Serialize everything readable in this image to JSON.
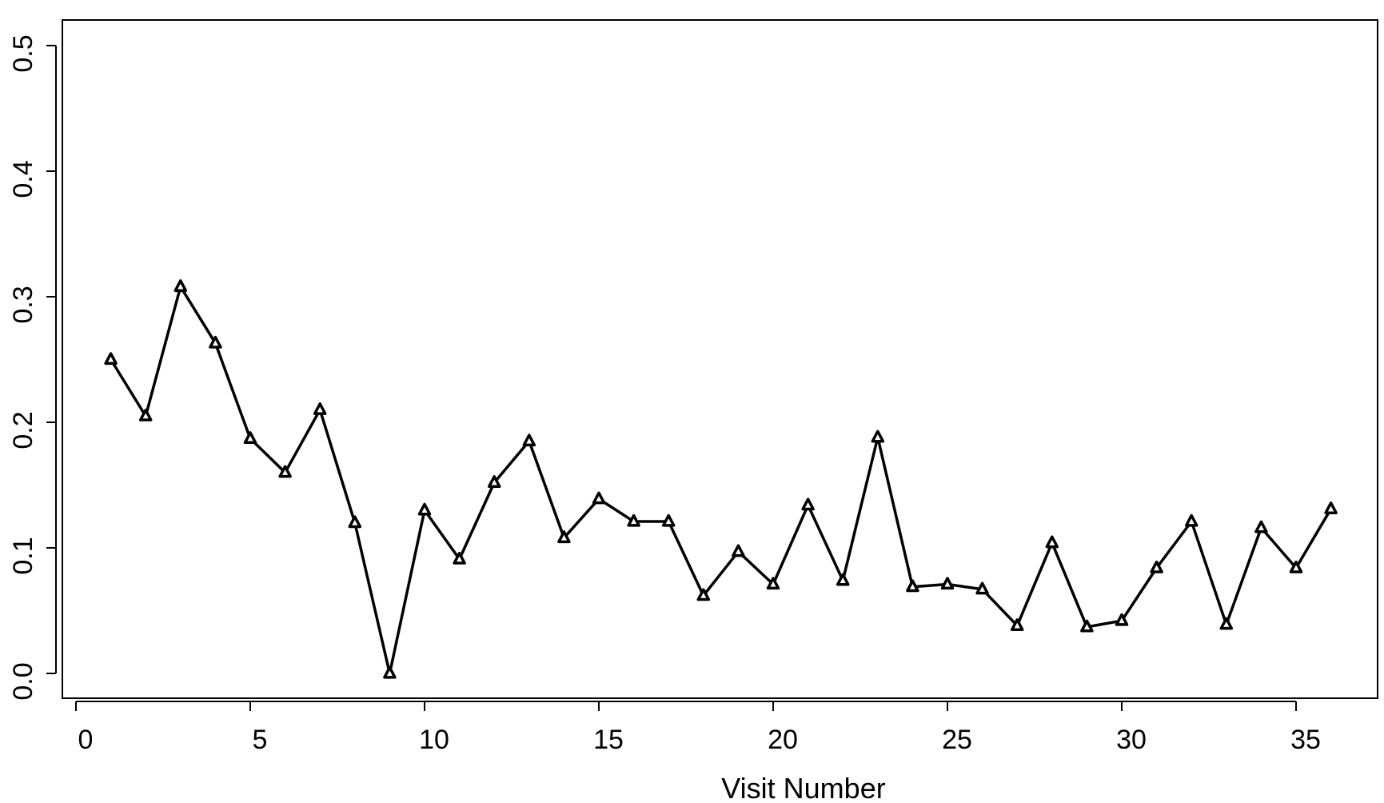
{
  "chart_data": {
    "type": "line",
    "title": "",
    "xlabel": "Visit Number",
    "ylabel": "",
    "xlim": [
      0,
      36
    ],
    "ylim": [
      0.0,
      0.5
    ],
    "x_ticks": [
      0,
      5,
      10,
      15,
      20,
      25,
      30,
      35
    ],
    "x_tick_labels": [
      "0",
      "5",
      "10",
      "15",
      "20",
      "25",
      "30",
      "35"
    ],
    "y_ticks": [
      0.0,
      0.1,
      0.2,
      0.3,
      0.4,
      0.5
    ],
    "y_tick_labels": [
      "0.0",
      "0.1",
      "0.2",
      "0.3",
      "0.4",
      "0.5"
    ],
    "grid": false,
    "marker": "triangle",
    "line_color": "#000000",
    "series": [
      {
        "x": [
          1,
          2,
          3,
          4,
          5,
          6,
          7,
          8,
          9,
          10,
          11,
          12,
          13,
          14,
          15,
          16,
          17,
          18,
          19,
          20,
          21,
          22,
          23,
          24,
          25,
          26,
          27,
          28,
          29,
          30,
          31,
          32,
          33,
          34,
          35,
          36
        ],
        "values": [
          0.25,
          0.205,
          0.308,
          0.263,
          0.187,
          0.16,
          0.21,
          0.12,
          0.0,
          0.13,
          0.091,
          0.152,
          0.185,
          0.108,
          0.139,
          0.121,
          0.121,
          0.062,
          0.097,
          0.071,
          0.134,
          0.074,
          0.188,
          0.069,
          0.071,
          0.067,
          0.038,
          0.104,
          0.037,
          0.042,
          0.084,
          0.121,
          0.039,
          0.116,
          0.084,
          0.131
        ]
      }
    ]
  }
}
